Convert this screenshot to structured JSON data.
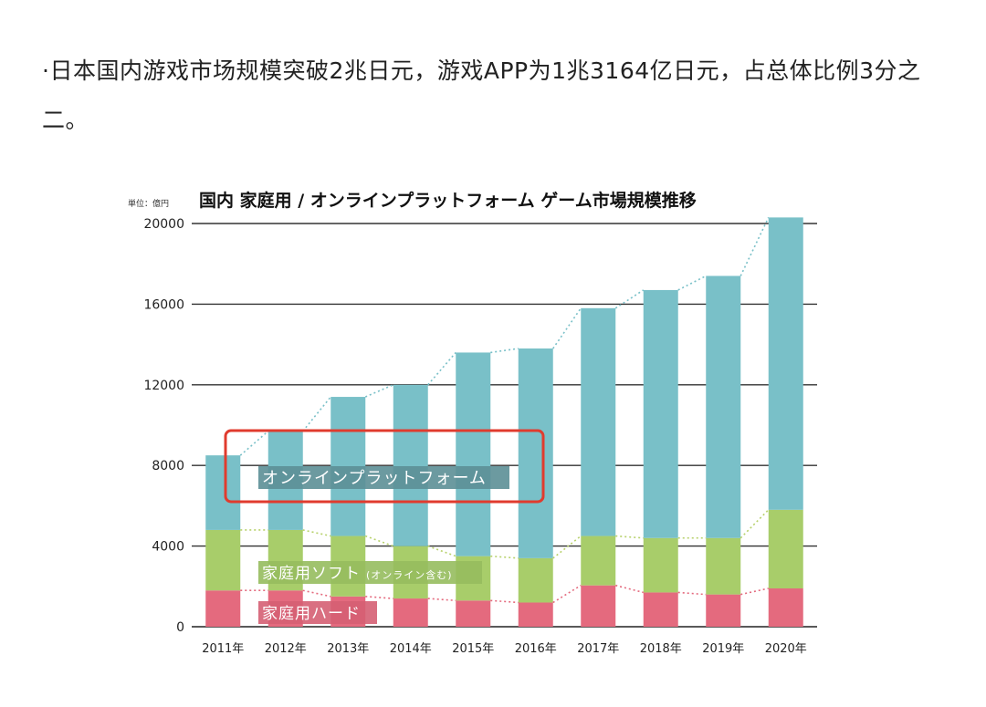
{
  "article": {
    "paragraph": "·日本国内游戏市场规模突破2兆日元，游戏APP为1兆3164亿日元，占总体比例3分之二。"
  },
  "chart_data": {
    "type": "bar",
    "stacked": true,
    "title": "国内 家庭用 / オンラインプラットフォーム ゲーム市場規模推移",
    "unit_label": "単位：億円",
    "categories": [
      "2011年",
      "2012年",
      "2013年",
      "2014年",
      "2015年",
      "2016年",
      "2017年",
      "2018年",
      "2019年",
      "2020年"
    ],
    "ylim": [
      0,
      20000
    ],
    "yticks": [
      0,
      4000,
      8000,
      12000,
      16000,
      20000
    ],
    "grid": true,
    "series": [
      {
        "name": "家庭用ハード",
        "color": "#e46a7e",
        "values": [
          1800,
          1800,
          1500,
          1400,
          1300,
          1200,
          2050,
          1700,
          1600,
          1900
        ]
      },
      {
        "name": "家庭用ソフト",
        "note": "(オンライン含む)",
        "color": "#a8cd6a",
        "values": [
          3000,
          3000,
          3000,
          2600,
          2200,
          2200,
          2450,
          2700,
          2800,
          3900
        ]
      },
      {
        "name": "オンラインプラットフォーム",
        "color": "#79c0c8",
        "values": [
          3700,
          4900,
          6900,
          8000,
          10100,
          10400,
          11300,
          12300,
          13000,
          14500
        ]
      }
    ],
    "annotation": {
      "label": "オンラインプラットフォーム",
      "highlight_color": "#e03b2e"
    }
  }
}
